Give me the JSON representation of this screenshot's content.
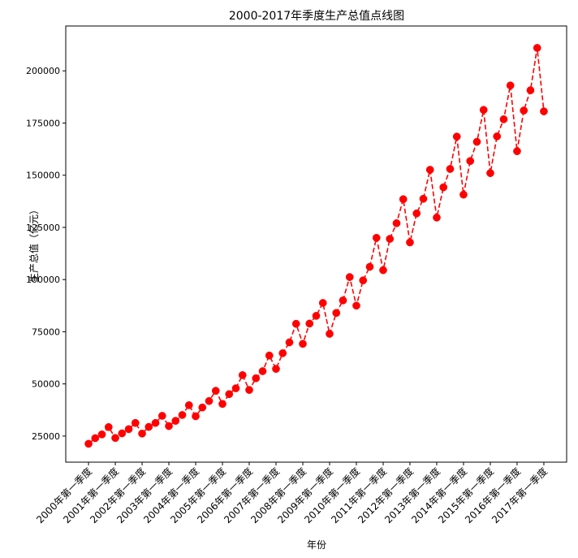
{
  "chart_data": {
    "type": "line",
    "title": "2000-2017年季度生产总值点线图",
    "xlabel": "年份",
    "ylabel": "生产总值（亿元）",
    "x_tick_labels": [
      "2000年第一季度",
      "2001年第一季度",
      "2002年第一季度",
      "2003年第一季度",
      "2004年第一季度",
      "2005年第一季度",
      "2006年第一季度",
      "2007年第一季度",
      "2008年第一季度",
      "2009年第一季度",
      "2010年第一季度",
      "2011年第一季度",
      "2012年第一季度",
      "2013年第一季度",
      "2014年第一季度",
      "2015年第一季度",
      "2016年第一季度",
      "2017年第一季度"
    ],
    "y_ticks": [
      25000,
      50000,
      75000,
      100000,
      125000,
      150000,
      175000,
      200000
    ],
    "y_tick_labels": [
      "25000",
      "50000",
      "75000",
      "100000",
      "125000",
      "150000",
      "175000",
      "200000"
    ],
    "ylim": [
      12500,
      221500
    ],
    "grid": false,
    "line_color": "#ff0000",
    "line_style": "dashed",
    "marker": "circle",
    "series": [
      {
        "values": [
          21300,
          24000,
          25800,
          29300,
          24100,
          26300,
          28300,
          31300,
          26200,
          29400,
          31300,
          34700,
          29800,
          32300,
          35100,
          39800,
          34500,
          38700,
          41800,
          46700,
          40400,
          45100,
          47900,
          54200,
          47100,
          52700,
          56100,
          63600,
          57200,
          64700,
          69900,
          78800,
          69200,
          78900,
          82600,
          88800,
          74000,
          84000,
          90000,
          101200,
          87500,
          99600,
          106100,
          120000,
          104500,
          119500,
          127000,
          138500,
          117800,
          131700,
          138700,
          152600,
          129700,
          144200,
          153000,
          168500,
          140700,
          156800,
          166000,
          181300,
          151000,
          168600,
          176800,
          193000,
          161500,
          181000,
          190700,
          211000,
          180600
        ]
      }
    ]
  }
}
